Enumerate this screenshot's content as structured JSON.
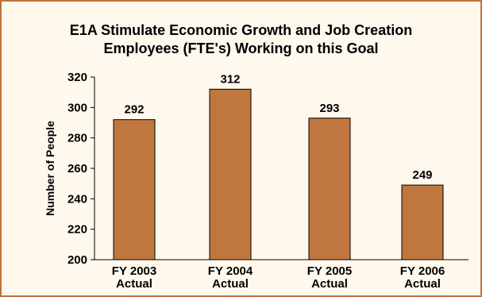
{
  "chart_data": {
    "type": "bar",
    "title_lines": [
      "E1A Stimulate Economic Growth and Job Creation",
      "Employees (FTE's) Working on this Goal"
    ],
    "ylabel": "Number of People",
    "xlabel": "",
    "categories": [
      [
        "FY 2003",
        "Actual"
      ],
      [
        "FY 2004",
        "Actual"
      ],
      [
        "FY 2005",
        "Actual"
      ],
      [
        "FY 2006",
        "Actual"
      ]
    ],
    "values": [
      292,
      312,
      293,
      249
    ],
    "data_labels": [
      "292",
      "312",
      "293",
      "249"
    ],
    "ylim": [
      200,
      320
    ],
    "yticks": [
      200,
      220,
      240,
      260,
      280,
      300,
      320
    ],
    "ytick_labels": [
      "200",
      "220",
      "240",
      "260",
      "280",
      "300",
      "320"
    ],
    "grid": false,
    "bar_color": "#c0773f",
    "border_color": "#c1713a",
    "background_color": "#fff8ec"
  }
}
